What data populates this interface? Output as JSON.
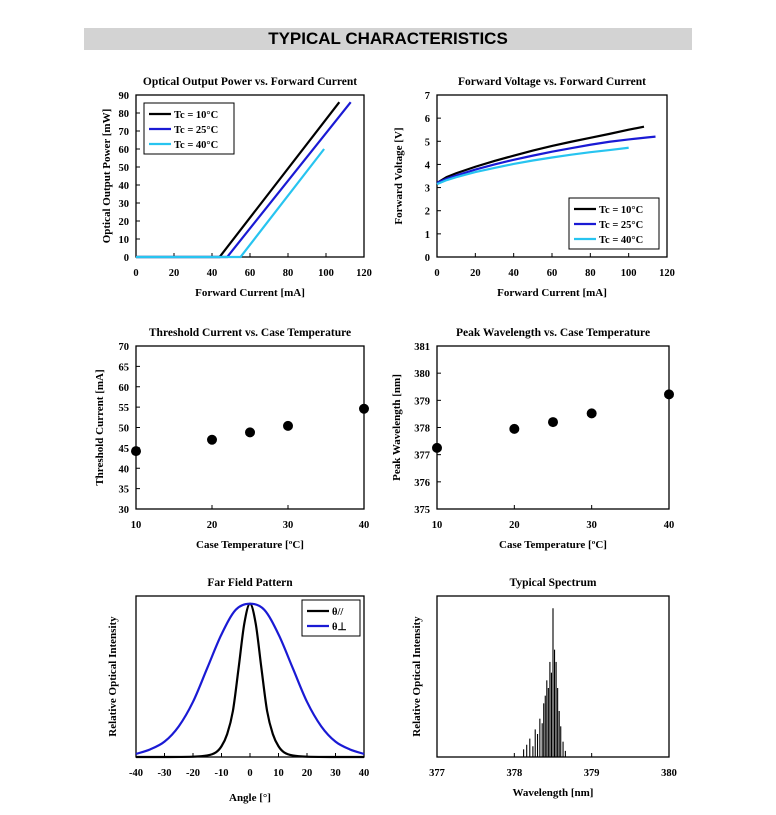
{
  "page": {
    "header": "TYPICAL CHARACTERISTICS"
  },
  "chart_data": [
    {
      "id": "power",
      "type": "line",
      "title": "Optical Output Power vs. Forward Current",
      "xlabel": "Forward Current [mA]",
      "ylabel": "Optical Output Power [mW]",
      "xlim": [
        0,
        120
      ],
      "ylim": [
        0,
        90
      ],
      "xticks": [
        0,
        20,
        40,
        60,
        80,
        100,
        120
      ],
      "yticks": [
        0,
        10,
        20,
        30,
        40,
        50,
        60,
        70,
        80,
        90
      ],
      "legend_position": "top-left",
      "series": [
        {
          "name": "Tc = 10°C",
          "color": "#000000",
          "x": [
            0,
            44,
            107
          ],
          "y": [
            0,
            0,
            86
          ]
        },
        {
          "name": "Tc = 25°C",
          "color": "#1a1ad4",
          "x": [
            0,
            48,
            113
          ],
          "y": [
            0,
            0,
            86
          ]
        },
        {
          "name": "Tc = 40°C",
          "color": "#27c4f0",
          "x": [
            0,
            55,
            99
          ],
          "y": [
            0,
            0,
            60
          ]
        }
      ]
    },
    {
      "id": "voltage",
      "type": "line",
      "title": "Forward Voltage vs. Forward Current",
      "xlabel": "Forward Current [mA]",
      "ylabel": "Forward Voltage [V]",
      "xlim": [
        0,
        120
      ],
      "ylim": [
        0,
        7
      ],
      "xticks": [
        0,
        20,
        40,
        60,
        80,
        100,
        120
      ],
      "yticks": [
        0,
        1,
        2,
        3,
        4,
        5,
        6,
        7
      ],
      "legend_position": "bottom-right",
      "series": [
        {
          "name": "Tc = 10°C",
          "color": "#000000",
          "x": [
            0,
            5,
            10,
            20,
            30,
            40,
            50,
            60,
            70,
            80,
            90,
            100,
            108
          ],
          "y": [
            3.2,
            3.45,
            3.62,
            3.9,
            4.15,
            4.38,
            4.6,
            4.8,
            4.98,
            5.15,
            5.32,
            5.5,
            5.63
          ]
        },
        {
          "name": "Tc = 25°C",
          "color": "#1a1ad4",
          "x": [
            0,
            5,
            10,
            20,
            30,
            40,
            50,
            60,
            70,
            80,
            90,
            100,
            110,
            114
          ],
          "y": [
            3.2,
            3.38,
            3.52,
            3.78,
            4.0,
            4.2,
            4.38,
            4.55,
            4.7,
            4.85,
            4.98,
            5.08,
            5.17,
            5.2
          ]
        },
        {
          "name": "Tc = 40°C",
          "color": "#27c4f0",
          "x": [
            0,
            5,
            10,
            20,
            30,
            40,
            50,
            60,
            70,
            80,
            90,
            100
          ],
          "y": [
            3.15,
            3.32,
            3.45,
            3.67,
            3.85,
            4.02,
            4.17,
            4.3,
            4.42,
            4.53,
            4.62,
            4.72
          ]
        }
      ]
    },
    {
      "id": "threshold",
      "type": "scatter",
      "title": "Threshold Current vs. Case Temperature",
      "xlabel": "Case Temperature [ºC]",
      "ylabel": "Threshold Current [mA]",
      "xlim": [
        10,
        40
      ],
      "ylim": [
        30,
        70
      ],
      "xticks": [
        10,
        20,
        30,
        40
      ],
      "yticks": [
        30,
        35,
        40,
        45,
        50,
        55,
        60,
        65,
        70
      ],
      "series": [
        {
          "color": "#000000",
          "x": [
            10,
            20,
            25,
            30,
            40
          ],
          "y": [
            44.2,
            47.0,
            48.8,
            50.4,
            54.6
          ]
        }
      ]
    },
    {
      "id": "wavelength",
      "type": "scatter",
      "title": "Peak Wavelength vs. Case Temperature",
      "xlabel": "Case Temperature [ºC]",
      "ylabel": "Peak Wavelength [nm]",
      "xlim": [
        10,
        40
      ],
      "ylim": [
        375,
        381
      ],
      "xticks": [
        10,
        20,
        30,
        40
      ],
      "yticks": [
        375,
        376,
        377,
        378,
        379,
        380,
        381
      ],
      "series": [
        {
          "color": "#000000",
          "x": [
            10,
            20,
            25,
            30,
            40
          ],
          "y": [
            377.25,
            377.95,
            378.2,
            378.52,
            379.22
          ]
        }
      ]
    },
    {
      "id": "farfield",
      "type": "line",
      "title": "Far Field Pattern",
      "xlabel": "Angle [°]",
      "ylabel": "Relative Optical Intensity",
      "xlim": [
        -40,
        40
      ],
      "ylim": [
        0,
        1.05
      ],
      "xticks": [
        -40,
        -30,
        -20,
        -10,
        0,
        10,
        20,
        30,
        40
      ],
      "legend_position": "top-right",
      "series": [
        {
          "name": "θ//",
          "color": "#000000",
          "x": [
            -40,
            -30,
            -20,
            -15,
            -12,
            -10,
            -8,
            -6,
            -4,
            -2,
            0,
            2,
            4,
            6,
            8,
            10,
            12,
            15,
            20,
            30,
            40
          ],
          "y": [
            0,
            0,
            0.002,
            0.01,
            0.03,
            0.07,
            0.15,
            0.3,
            0.58,
            0.87,
            1.0,
            0.87,
            0.58,
            0.3,
            0.15,
            0.07,
            0.03,
            0.01,
            0.002,
            0,
            0
          ]
        },
        {
          "name": "θ⊥",
          "color": "#1a1ad4",
          "x": [
            -40,
            -35,
            -30,
            -25,
            -20,
            -15,
            -10,
            -5,
            0,
            5,
            10,
            15,
            20,
            25,
            30,
            35,
            40
          ],
          "y": [
            0.02,
            0.05,
            0.1,
            0.2,
            0.36,
            0.58,
            0.8,
            0.96,
            1.0,
            0.96,
            0.8,
            0.58,
            0.36,
            0.2,
            0.1,
            0.05,
            0.02
          ]
        }
      ]
    },
    {
      "id": "spectrum",
      "type": "line",
      "title": "Typical Spectrum",
      "xlabel": "Wavelength [nm]",
      "ylabel": "Relative Optical Intensity",
      "xlim": [
        377,
        380
      ],
      "ylim": [
        0,
        1.05
      ],
      "xticks": [
        377,
        378,
        379,
        380
      ],
      "series": [
        {
          "color": "#000000",
          "x": [
            378.12,
            378.16,
            378.2,
            378.24,
            378.27,
            378.3,
            378.33,
            378.36,
            378.38,
            378.4,
            378.42,
            378.44,
            378.46,
            378.48,
            378.5,
            378.52,
            378.54,
            378.56,
            378.58,
            378.6,
            378.63,
            378.66
          ],
          "y": [
            0.05,
            0.08,
            0.12,
            0.07,
            0.18,
            0.15,
            0.25,
            0.22,
            0.35,
            0.4,
            0.5,
            0.45,
            0.62,
            0.55,
            0.97,
            0.7,
            0.62,
            0.45,
            0.3,
            0.2,
            0.1,
            0.04
          ]
        }
      ]
    }
  ]
}
